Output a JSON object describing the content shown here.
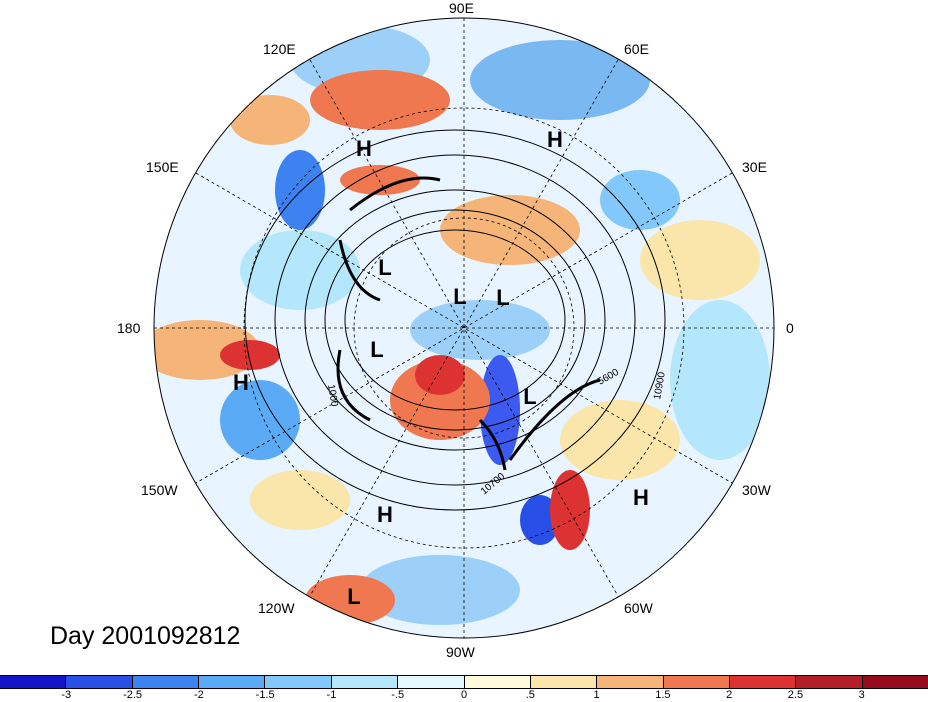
{
  "title": "Day 2001092812",
  "longitude_labels": {
    "e90": "90E",
    "e120": "120E",
    "e60": "60E",
    "e150": "150E",
    "e30": "30E",
    "l180": "180",
    "l0": "0",
    "w150": "150W",
    "w30": "30W",
    "w120": "120W",
    "w60": "60W",
    "w90": "90W"
  },
  "centers": [
    {
      "label": "H",
      "region": "north-asia"
    },
    {
      "label": "H",
      "region": "siberia"
    },
    {
      "label": "L",
      "region": "north-pacific"
    },
    {
      "label": "L",
      "region": "arctic-1"
    },
    {
      "label": "L",
      "region": "arctic-2"
    },
    {
      "label": "L",
      "region": "alaska"
    },
    {
      "label": "H",
      "region": "pacific"
    },
    {
      "label": "L",
      "region": "labrador"
    },
    {
      "label": "H",
      "region": "atlantic"
    },
    {
      "label": "H",
      "region": "western-us"
    },
    {
      "label": "L",
      "region": "eastern-pacific"
    }
  ],
  "contour_labels": {
    "a": "10900",
    "b": "5600",
    "c": "1000",
    "d": "10700"
  },
  "colorbar": {
    "ticks": [
      "-3",
      "-2.5",
      "-2",
      "-1.5",
      "-1",
      "-.5",
      "0",
      ".5",
      "1",
      "1.5",
      "2",
      "2.5",
      "3"
    ],
    "colors": [
      "#1414c8",
      "#2850e6",
      "#3c82f0",
      "#5aaaf5",
      "#82c8fa",
      "#b4e6fc",
      "#e6f8ff",
      "#fffadc",
      "#fae6aa",
      "#f5b478",
      "#f07850",
      "#dc3232",
      "#b41e28",
      "#960a1e"
    ]
  }
}
